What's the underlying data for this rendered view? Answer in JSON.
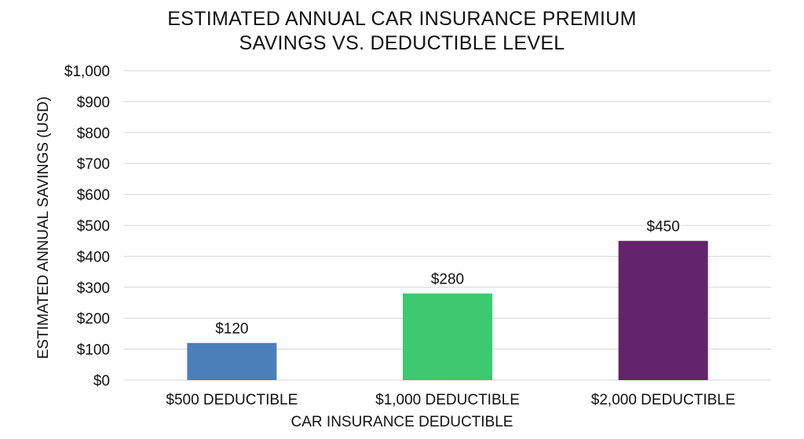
{
  "chart_data": {
    "type": "bar",
    "title": [
      "ESTIMATED ANNUAL CAR INSURANCE PREMIUM",
      "SAVINGS VS. DEDUCTIBLE LEVEL"
    ],
    "xlabel": "CAR INSURANCE DEDUCTIBLE",
    "ylabel": "ESTIMATED ANNUAL SAVINGS (USD)",
    "categories": [
      "$500 DEDUCTIBLE",
      "$1,000 DEDUCTIBLE",
      "$2,000 DEDUCTIBLE"
    ],
    "values": [
      120,
      280,
      450
    ],
    "data_labels": [
      "$120",
      "$280",
      "$450"
    ],
    "colors": [
      "#4a7fba",
      "#3cc96f",
      "#63246b"
    ],
    "ylim": [
      0,
      1000
    ],
    "yticks": [
      0,
      100,
      200,
      300,
      400,
      500,
      600,
      700,
      800,
      900,
      1000
    ],
    "ytick_labels": [
      "$0",
      "$100",
      "$200",
      "$300",
      "$400",
      "$500",
      "$600",
      "$700",
      "$800",
      "$900",
      "$1,000"
    ],
    "grid": true,
    "grid_color": "#d4d4d4",
    "legend": "none"
  }
}
